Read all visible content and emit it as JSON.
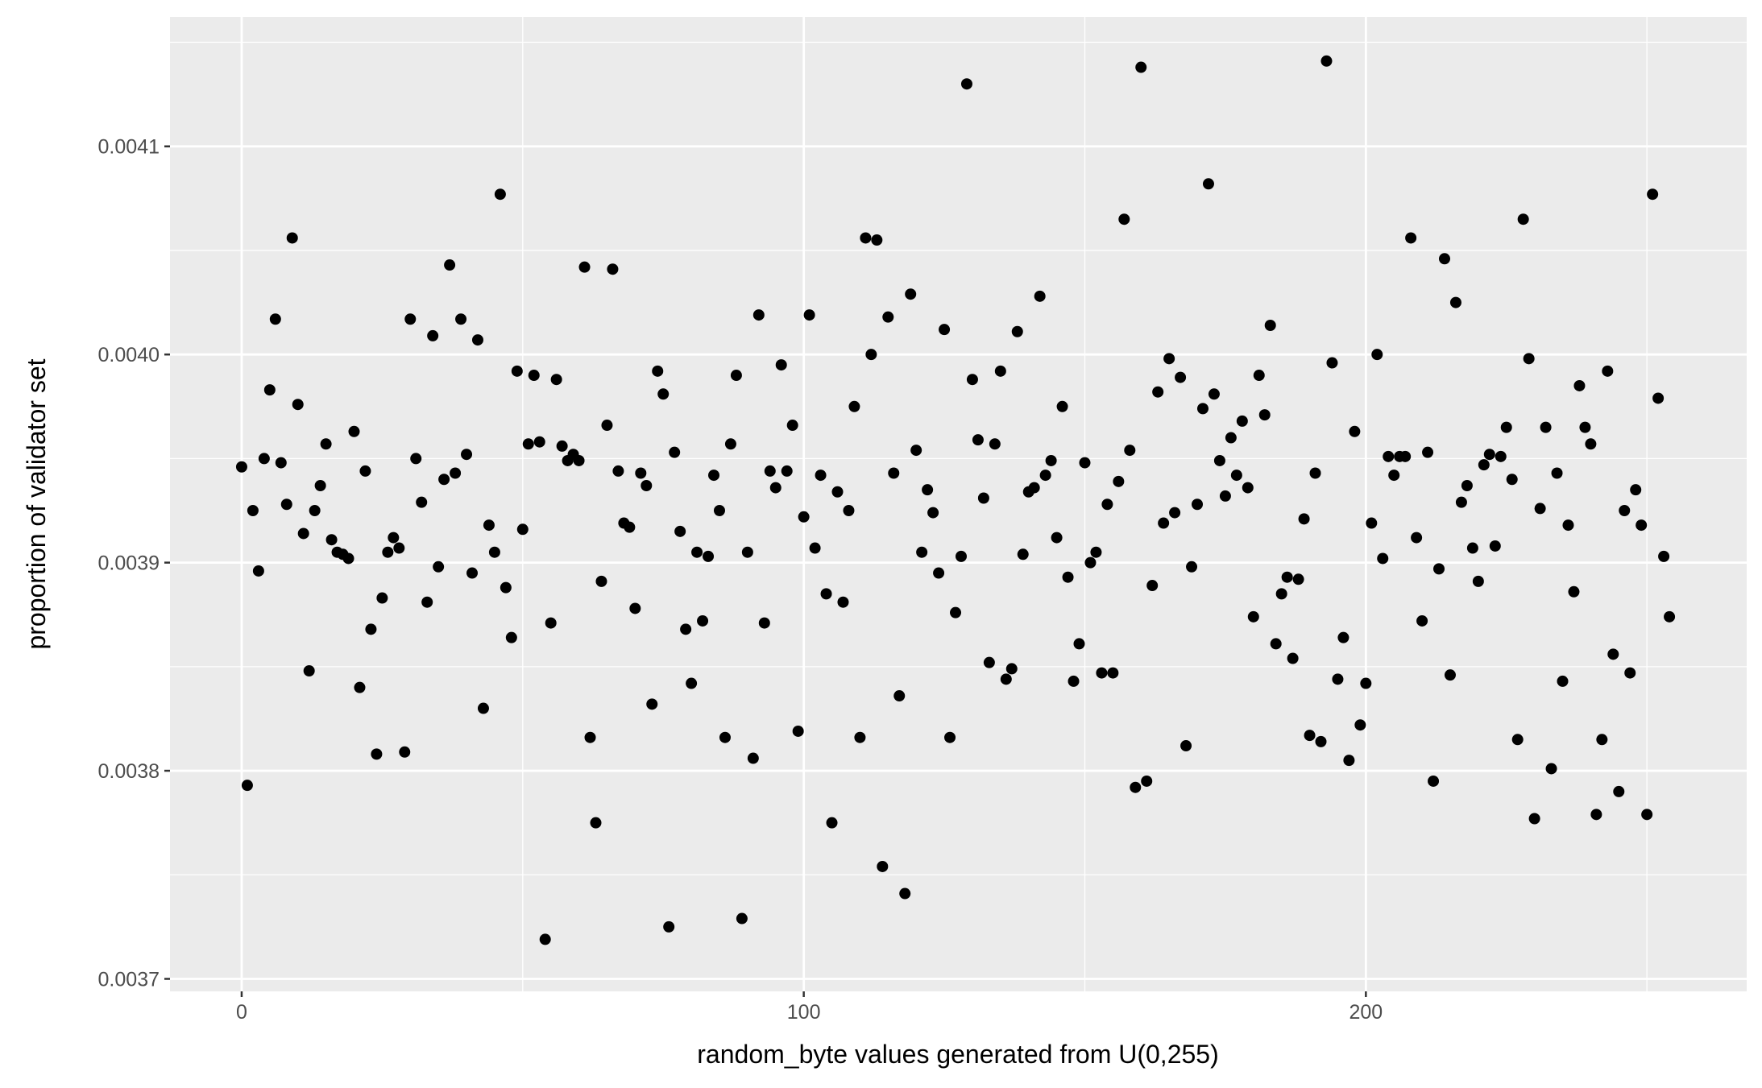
{
  "chart_data": {
    "type": "scatter",
    "x_label": "random_byte values generated from U(0,255)",
    "y_label": "proportion of validator set",
    "xlim": [
      -12.75,
      267.75
    ],
    "xticks": [
      0,
      100,
      200
    ],
    "ylim": [
      0.003694,
      0.0041622
    ],
    "yticks": [
      0.0037,
      0.0038,
      0.0039,
      {
        "value": 0.004,
        "label": "0.0040"
      },
      0.0041
    ],
    "grid": true,
    "color": "#000000",
    "x": [
      0,
      1,
      2,
      3,
      4,
      5,
      6,
      7,
      8,
      9,
      10,
      11,
      12,
      13,
      14,
      15,
      16,
      17,
      18,
      19,
      20,
      21,
      22,
      23,
      24,
      25,
      26,
      27,
      28,
      29,
      30,
      31,
      32,
      33,
      34,
      35,
      36,
      37,
      38,
      39,
      40,
      41,
      42,
      43,
      44,
      45,
      46,
      47,
      48,
      49,
      50,
      51,
      52,
      53,
      54,
      55,
      56,
      57,
      58,
      59,
      60,
      61,
      62,
      63,
      64,
      65,
      66,
      67,
      68,
      69,
      70,
      71,
      72,
      73,
      74,
      75,
      76,
      77,
      78,
      79,
      80,
      81,
      82,
      83,
      84,
      85,
      86,
      87,
      88,
      89,
      90,
      91,
      92,
      93,
      94,
      95,
      96,
      97,
      98,
      99,
      100,
      101,
      102,
      103,
      104,
      105,
      106,
      107,
      108,
      109,
      110,
      111,
      112,
      113,
      114,
      115,
      116,
      117,
      118,
      119,
      120,
      121,
      122,
      123,
      124,
      125,
      126,
      127,
      128,
      129,
      130,
      131,
      132,
      133,
      134,
      135,
      136,
      137,
      138,
      139,
      140,
      141,
      142,
      143,
      144,
      145,
      146,
      147,
      148,
      149,
      150,
      151,
      152,
      153,
      154,
      155,
      156,
      157,
      158,
      159,
      160,
      161,
      162,
      163,
      164,
      165,
      166,
      167,
      168,
      169,
      170,
      171,
      172,
      173,
      174,
      175,
      176,
      177,
      178,
      179,
      180,
      181,
      182,
      183,
      184,
      185,
      186,
      187,
      188,
      189,
      190,
      191,
      192,
      193,
      194,
      195,
      196,
      197,
      198,
      199,
      200,
      201,
      202,
      203,
      204,
      205,
      206,
      207,
      208,
      209,
      210,
      211,
      212,
      213,
      214,
      215,
      216,
      217,
      218,
      219,
      220,
      221,
      222,
      223,
      224,
      225,
      226,
      227,
      228,
      229,
      230,
      231,
      232,
      233,
      234,
      235,
      236,
      237,
      238,
      239,
      240,
      241,
      242,
      243,
      244,
      245,
      246,
      247,
      248,
      249,
      250,
      251,
      252,
      253,
      254
    ],
    "values": [
      0.003946,
      0.003793,
      0.003925,
      0.003896,
      0.00395,
      0.003983,
      0.004017,
      0.003948,
      0.003928,
      0.004056,
      0.003976,
      0.003914,
      0.003848,
      0.003925,
      0.003937,
      0.003957,
      0.003911,
      0.003905,
      0.003904,
      0.003902,
      0.003963,
      0.00384,
      0.003944,
      0.003868,
      0.003808,
      0.003883,
      0.003905,
      0.003912,
      0.003907,
      0.003809,
      0.004017,
      0.00395,
      0.003929,
      0.003881,
      0.004009,
      0.003898,
      0.00394,
      0.004043,
      0.003943,
      0.004017,
      0.003952,
      0.003895,
      0.004007,
      0.00383,
      0.003918,
      0.003905,
      0.004077,
      0.003888,
      0.003864,
      0.003992,
      0.003916,
      0.003957,
      0.00399,
      0.003958,
      0.003719,
      0.003871,
      0.003988,
      0.003956,
      0.003949,
      0.003952,
      0.003949,
      0.004042,
      0.003816,
      0.003775,
      0.003891,
      0.003966,
      0.004041,
      0.003944,
      0.003919,
      0.003917,
      0.003878,
      0.003943,
      0.003937,
      0.003832,
      0.003992,
      0.003981,
      0.003725,
      0.003953,
      0.003915,
      0.003868,
      0.003842,
      0.003905,
      0.003872,
      0.003903,
      0.003942,
      0.003925,
      0.003816,
      0.003957,
      0.00399,
      0.003729,
      0.003905,
      0.003806,
      0.004019,
      0.003871,
      0.003944,
      0.003936,
      0.003995,
      0.003944,
      0.003966,
      0.003819,
      0.003922,
      0.004019,
      0.003907,
      0.003942,
      0.003885,
      0.003775,
      0.003934,
      0.003881,
      0.003925,
      0.003975,
      0.003816,
      0.004056,
      0.004,
      0.004055,
      0.003754,
      0.004018,
      0.003943,
      0.003836,
      0.003741,
      0.004029,
      0.003954,
      0.003905,
      0.003935,
      0.003924,
      0.003895,
      0.004012,
      0.003816,
      0.003876,
      0.003903,
      0.00413,
      0.003988,
      0.003959,
      0.003931,
      0.003852,
      0.003957,
      0.003992,
      0.003844,
      0.003849,
      0.004011,
      0.003904,
      0.003934,
      0.003936,
      0.004028,
      0.003942,
      0.003949,
      0.003912,
      0.003975,
      0.003893,
      0.003843,
      0.003861,
      0.003948,
      0.0039,
      0.003905,
      0.003847,
      0.003928,
      0.003847,
      0.003939,
      0.004065,
      0.003954,
      0.003792,
      0.004138,
      0.003795,
      0.003889,
      0.003982,
      0.003919,
      0.003998,
      0.003924,
      0.003989,
      0.003812,
      0.003898,
      0.003928,
      0.003974,
      0.004082,
      0.003981,
      0.003949,
      0.003932,
      0.00396,
      0.003942,
      0.003968,
      0.003936,
      0.003874,
      0.00399,
      0.003971,
      0.004014,
      0.003861,
      0.003885,
      0.003893,
      0.003854,
      0.003892,
      0.003921,
      0.003817,
      0.003943,
      0.003814,
      0.004141,
      0.003996,
      0.003844,
      0.003864,
      0.003805,
      0.003963,
      0.003822,
      0.003842,
      0.003919,
      0.004,
      0.003902,
      0.003951,
      0.003942,
      0.003951,
      0.003951,
      0.004056,
      0.003912,
      0.003872,
      0.003953,
      0.003795,
      0.003897,
      0.004046,
      0.003846,
      0.004025,
      0.003929,
      0.003937,
      0.003907,
      0.003891,
      0.003947,
      0.003952,
      0.003908,
      0.003951,
      0.003965,
      0.00394,
      0.003815,
      0.004065,
      0.003998,
      0.003777,
      0.003926,
      0.003965,
      0.003801,
      0.003943,
      0.003843,
      0.003918,
      0.003886,
      0.003985,
      0.003965,
      0.003957,
      0.003779,
      0.003815,
      0.003992,
      0.003856,
      0.00379,
      0.003925,
      0.003847,
      0.003935,
      0.003918,
      0.003779,
      0.004077,
      0.003979,
      0.003903,
      0.003874
    ]
  }
}
